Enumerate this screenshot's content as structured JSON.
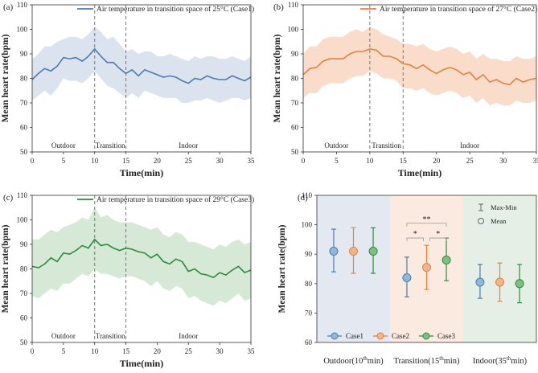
{
  "figure": {
    "ylabel": "Mean heart rate(bpm)",
    "xlabel": "Time(min)"
  },
  "chart_data": [
    {
      "type": "line",
      "panel": "(a)",
      "legend": "Air temperature in transition space of  25°C (Case1)",
      "color": "#4a7cb0",
      "band_color": "#dbe4ee",
      "xlabel": "Time(min)",
      "ylabel": "Mean heart rate(bpm)",
      "xlim": [
        0,
        35
      ],
      "ylim": [
        50,
        110
      ],
      "xticks": [
        0,
        5,
        10,
        15,
        20,
        25,
        30,
        35
      ],
      "yticks": [
        50,
        60,
        70,
        80,
        90,
        100,
        110
      ],
      "dividers": [
        10,
        15
      ],
      "regions": [
        "Outdoor",
        "Transition",
        "Indoor"
      ],
      "x": [
        0,
        1,
        2,
        3,
        4,
        5,
        6,
        7,
        8,
        9,
        10,
        11,
        12,
        13,
        14,
        15,
        16,
        17,
        18,
        19,
        20,
        21,
        22,
        23,
        24,
        25,
        26,
        27,
        28,
        29,
        30,
        31,
        32,
        33,
        34,
        35
      ],
      "values": [
        79.5,
        82,
        84,
        83,
        85,
        88.5,
        88,
        88.5,
        87,
        89,
        92,
        89,
        86.5,
        86.5,
        84,
        82,
        83.5,
        81,
        83.5,
        82.5,
        81.5,
        80.5,
        81,
        80.5,
        79,
        78,
        80,
        79.5,
        81,
        80,
        79.5,
        79.5,
        81,
        80,
        79,
        80.5
      ],
      "upper": [
        88,
        90,
        93,
        93,
        95,
        96,
        97,
        97,
        96,
        98,
        101,
        99,
        96,
        97,
        94,
        91,
        92,
        90,
        91,
        91,
        89,
        89,
        90,
        89,
        88,
        87,
        89,
        88,
        89,
        89,
        88,
        88,
        89,
        88,
        87,
        89
      ],
      "lower": [
        71,
        73,
        75,
        73,
        76,
        80,
        79,
        79,
        78,
        80,
        83,
        80,
        77,
        76,
        74,
        72,
        74,
        72,
        75,
        74,
        73,
        72,
        72,
        72,
        70,
        70,
        71,
        71,
        72,
        71,
        70,
        71,
        72,
        72,
        71,
        72
      ]
    },
    {
      "type": "line",
      "panel": "(b)",
      "legend": "Air temperature in transition space of  27°C (Case2)",
      "color": "#e87f3c",
      "band_color": "#f9dcc9",
      "xlabel": "Time(min)",
      "ylabel": "Mean heart rate(bpm)",
      "xlim": [
        0,
        35
      ],
      "ylim": [
        50,
        110
      ],
      "xticks": [
        0,
        5,
        10,
        15,
        20,
        25,
        30,
        35
      ],
      "yticks": [
        50,
        60,
        70,
        80,
        90,
        100,
        110
      ],
      "dividers": [
        10,
        15
      ],
      "regions": [
        "Outdoor",
        "Transition",
        "Indoor"
      ],
      "x": [
        0,
        1,
        2,
        3,
        4,
        5,
        6,
        7,
        8,
        9,
        10,
        11,
        12,
        13,
        14,
        15,
        16,
        17,
        18,
        19,
        20,
        21,
        22,
        23,
        24,
        25,
        26,
        27,
        28,
        29,
        30,
        31,
        32,
        33,
        34,
        35
      ],
      "values": [
        81.5,
        84,
        84.5,
        87,
        88,
        88,
        88,
        90,
        91,
        91,
        92,
        91.5,
        89,
        89,
        88,
        86,
        85.5,
        84,
        85.5,
        83.5,
        82,
        83.5,
        84.5,
        83.5,
        81.5,
        82.5,
        79.5,
        81.5,
        78.5,
        79.5,
        78,
        77.5,
        80,
        78.5,
        79.5,
        80
      ],
      "upper": [
        90,
        93,
        93,
        96,
        97,
        97,
        97,
        99,
        100,
        99,
        101,
        100,
        98,
        97,
        96,
        94,
        94,
        93,
        94,
        92,
        91,
        92,
        93,
        92,
        90,
        91,
        88,
        90,
        88,
        88,
        87,
        87,
        89,
        88,
        88,
        89
      ],
      "lower": [
        72,
        74,
        74,
        77,
        78,
        78,
        78,
        80,
        81,
        81,
        83,
        82,
        80,
        80,
        79,
        76,
        76,
        75,
        76,
        74,
        73,
        74,
        75,
        74,
        72,
        73,
        70,
        72,
        69,
        70,
        69,
        69,
        71,
        70,
        70,
        71
      ]
    },
    {
      "type": "line",
      "panel": "(c)",
      "legend": "Air temperature in transition space of  29°C (Case3)",
      "color": "#2f8a3e",
      "band_color": "#d6e8d6",
      "xlabel": "Time(min)",
      "ylabel": "Mean heart rate(bpm)",
      "xlim": [
        0,
        35
      ],
      "ylim": [
        50,
        110
      ],
      "xticks": [
        0,
        5,
        10,
        15,
        20,
        25,
        30,
        35
      ],
      "yticks": [
        50,
        60,
        70,
        80,
        90,
        100,
        110
      ],
      "dividers": [
        10,
        15
      ],
      "regions": [
        "Outdoor",
        "Transition",
        "Indoor"
      ],
      "x": [
        0,
        1,
        2,
        3,
        4,
        5,
        6,
        7,
        8,
        9,
        10,
        11,
        12,
        13,
        14,
        15,
        16,
        17,
        18,
        19,
        20,
        21,
        22,
        23,
        24,
        25,
        26,
        27,
        28,
        29,
        30,
        31,
        32,
        33,
        34,
        35
      ],
      "values": [
        81,
        80.5,
        82,
        84.5,
        83,
        86.5,
        86,
        87.5,
        89.5,
        88.5,
        92,
        89.5,
        90,
        88.5,
        87.5,
        88.5,
        88,
        87,
        86.5,
        84.5,
        86,
        83,
        82,
        84,
        83,
        79,
        80,
        78,
        77.5,
        76.5,
        78.5,
        77.5,
        79.5,
        81,
        78.5,
        79.5
      ],
      "upper": [
        92,
        92,
        94,
        96,
        95,
        97,
        98,
        99,
        101,
        100,
        105,
        101,
        102,
        100,
        99,
        99,
        99,
        98,
        97,
        96,
        97,
        94,
        93,
        95,
        94,
        91,
        91,
        90,
        89,
        88,
        90,
        89,
        91,
        92,
        90,
        91
      ],
      "lower": [
        69,
        68,
        70,
        72,
        71,
        74,
        74,
        76,
        78,
        77,
        80,
        78,
        78,
        77,
        76,
        77,
        77,
        76,
        75,
        73,
        75,
        72,
        71,
        73,
        72,
        68,
        69,
        67,
        66,
        65,
        67,
        66,
        68,
        70,
        67,
        68
      ]
    },
    {
      "type": "errorbar",
      "panel": "(d)",
      "ylabel": "Mean heart rate(bpm)",
      "ylim": [
        60,
        110
      ],
      "yticks": [
        60,
        70,
        80,
        90,
        100,
        110
      ],
      "categories": [
        "Outdoor(10th min)",
        "Transition(15th min)",
        "Indoor(35th min)"
      ],
      "category_parts": [
        {
          "pre": "Outdoor(10",
          "sup": "th",
          "post": "min)"
        },
        {
          "pre": "Transition(15",
          "sup": "th",
          "post": "min)"
        },
        {
          "pre": "Indoor(35",
          "sup": "th",
          "post": "min)"
        }
      ],
      "region_colors": [
        "#e4e9f1",
        "#fbeadf",
        "#e5efe5"
      ],
      "series": [
        {
          "name": "Case1",
          "color": "#4a7cb0",
          "fill": "#8eb8dc",
          "mean": [
            91,
            82,
            80.5
          ],
          "max": [
            98.5,
            89,
            86.5
          ],
          "min": [
            84,
            75.5,
            75
          ]
        },
        {
          "name": "Case2",
          "color": "#e87f3c",
          "fill": "#f3b48a",
          "mean": [
            91,
            85.5,
            80.5
          ],
          "max": [
            99,
            93,
            87
          ],
          "min": [
            83.5,
            78,
            74
          ]
        },
        {
          "name": "Case3",
          "color": "#2f8a3e",
          "fill": "#7fbf7f",
          "mean": [
            91,
            88,
            80
          ],
          "max": [
            99,
            95.5,
            86.5
          ],
          "min": [
            83.5,
            81,
            73.5
          ]
        }
      ],
      "legend_top": {
        "range": "Max-Min",
        "mean": "Mean"
      },
      "significance": [
        {
          "label": "**",
          "from": 0,
          "to": 2
        },
        {
          "label": "*",
          "from": 0,
          "to": 1
        },
        {
          "label": "*",
          "from": 1,
          "to": 2
        }
      ]
    }
  ]
}
